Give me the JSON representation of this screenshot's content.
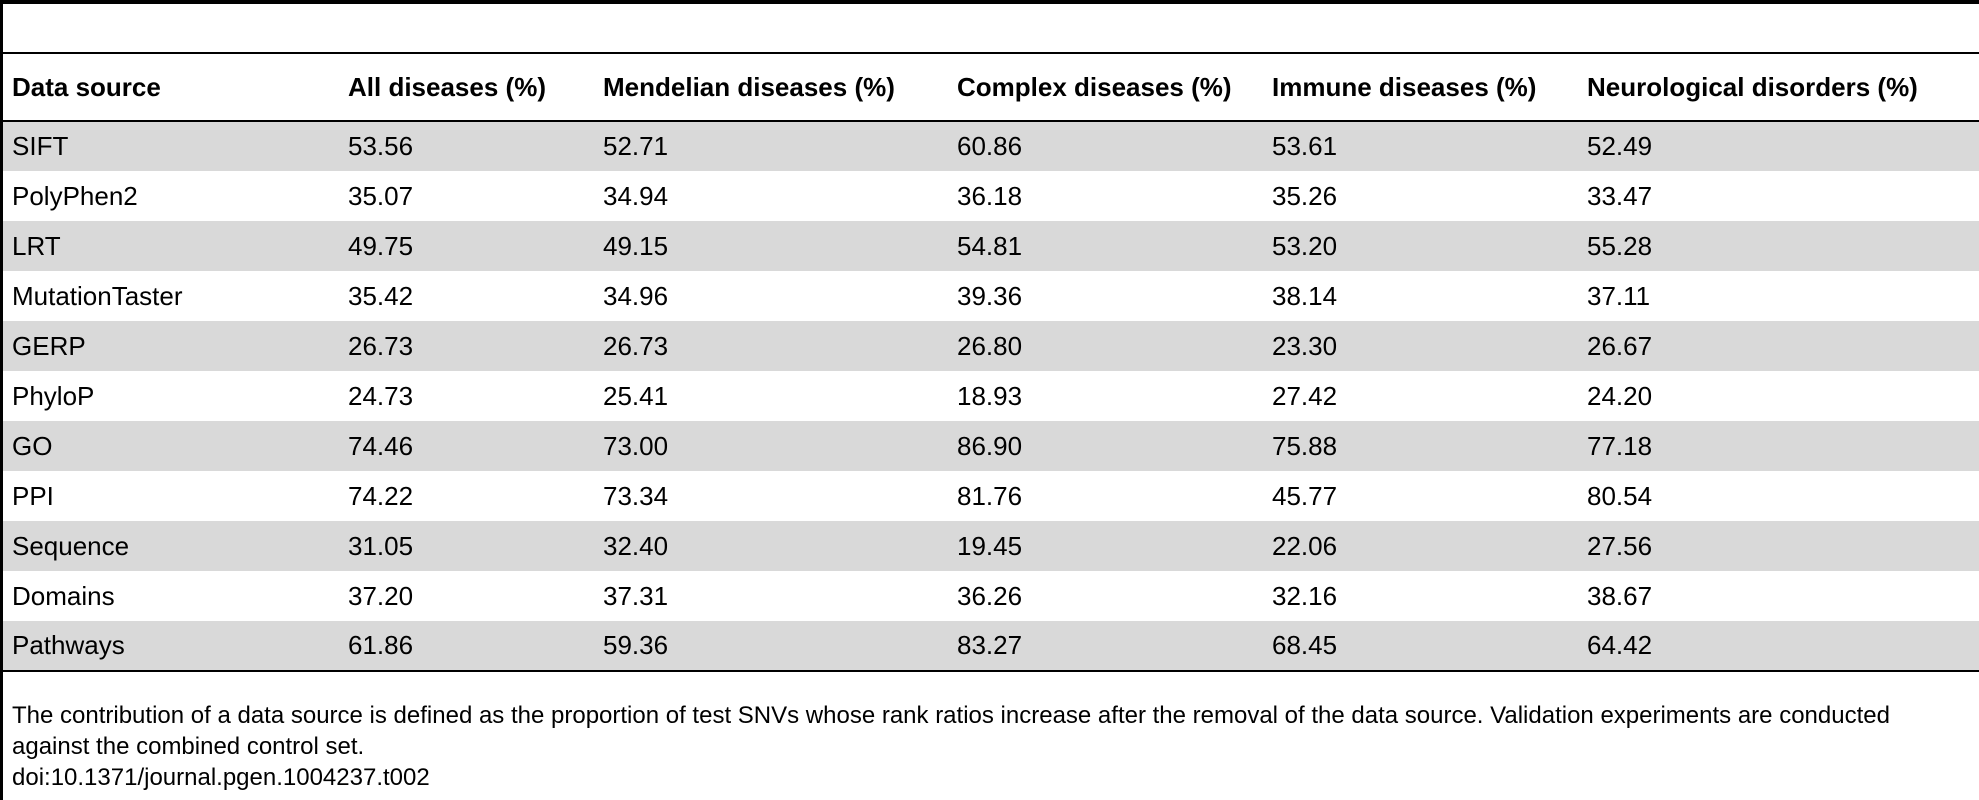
{
  "table": {
    "headers": [
      "Data source",
      "All diseases (%)",
      "Mendelian diseases (%)",
      "Complex diseases (%)",
      "Immune diseases (%)",
      "Neurological disorders (%)"
    ],
    "rows": [
      [
        "SIFT",
        "53.56",
        "52.71",
        "60.86",
        "53.61",
        "52.49"
      ],
      [
        "PolyPhen2",
        "35.07",
        "34.94",
        "36.18",
        "35.26",
        "33.47"
      ],
      [
        "LRT",
        "49.75",
        "49.15",
        "54.81",
        "53.20",
        "55.28"
      ],
      [
        "MutationTaster",
        "35.42",
        "34.96",
        "39.36",
        "38.14",
        "37.11"
      ],
      [
        "GERP",
        "26.73",
        "26.73",
        "26.80",
        "23.30",
        "26.67"
      ],
      [
        "PhyloP",
        "24.73",
        "25.41",
        "18.93",
        "27.42",
        "24.20"
      ],
      [
        "GO",
        "74.46",
        "73.00",
        "86.90",
        "75.88",
        "77.18"
      ],
      [
        "PPI",
        "74.22",
        "73.34",
        "81.76",
        "45.77",
        "80.54"
      ],
      [
        "Sequence",
        "31.05",
        "32.40",
        "19.45",
        "22.06",
        "27.56"
      ],
      [
        "Domains",
        "37.20",
        "37.31",
        "36.26",
        "32.16",
        "38.67"
      ],
      [
        "Pathways",
        "61.86",
        "59.36",
        "83.27",
        "68.45",
        "64.42"
      ]
    ]
  },
  "footnote": {
    "text": "The contribution of a data source is defined as the proportion of test SNVs whose rank ratios increase after the removal of the data source. Validation experiments are conducted against the combined control set.",
    "doi": "doi:10.1371/journal.pgen.1004237.t002"
  },
  "colors": {
    "shaded_row": "#d9d9d9",
    "rule": "#000000"
  }
}
